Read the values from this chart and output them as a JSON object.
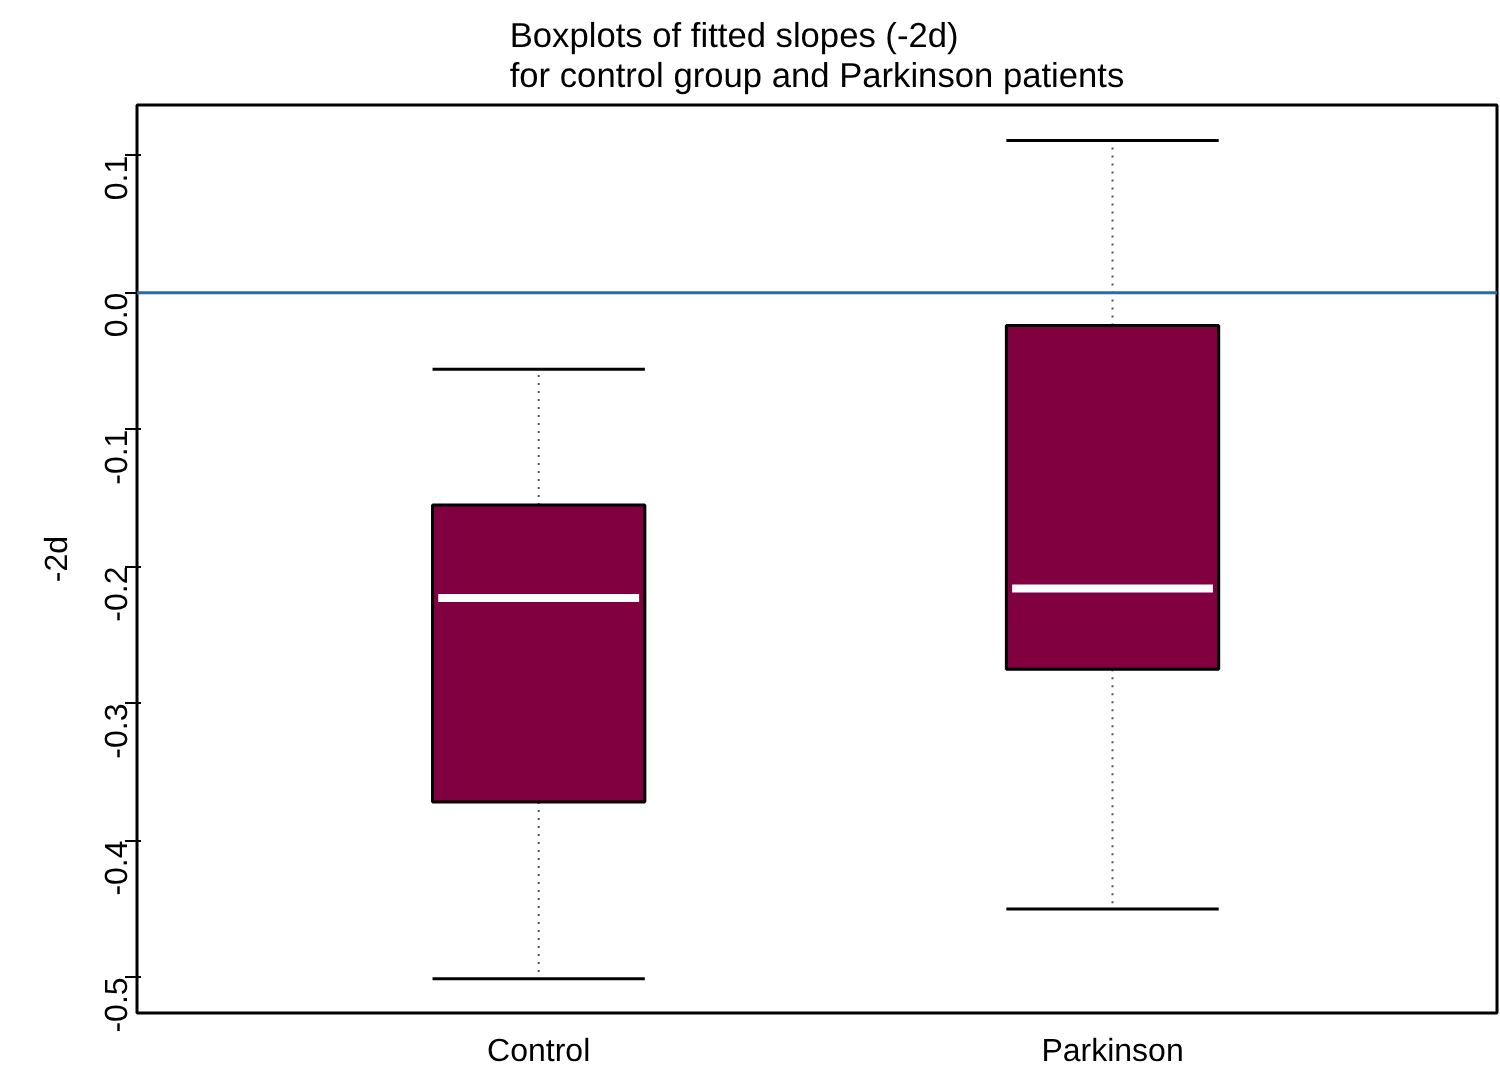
{
  "chart_data": {
    "type": "box",
    "title": "Boxplots of fitted slopes (-2d)\nfor control group and Parkinson patients",
    "ylabel": "-2d",
    "categories": [
      "Control",
      "Parkinson"
    ],
    "boxes": [
      {
        "low": -0.501,
        "q1": -0.372,
        "median": -0.223,
        "q3": -0.155,
        "high": -0.056
      },
      {
        "low": -0.45,
        "q1": -0.275,
        "median": -0.216,
        "q3": -0.024,
        "high": 0.111
      }
    ],
    "color": "#800040",
    "ylim": [
      -0.526,
      0.137
    ],
    "yticks": [
      -0.5,
      -0.4,
      -0.3,
      -0.2,
      -0.1,
      {
        "value": 0,
        "label": "0.0"
      },
      0.1
    ],
    "ref_lines": [
      {
        "axis": "y",
        "value": 0,
        "color": "#2e6aa6"
      }
    ],
    "grid": false
  }
}
